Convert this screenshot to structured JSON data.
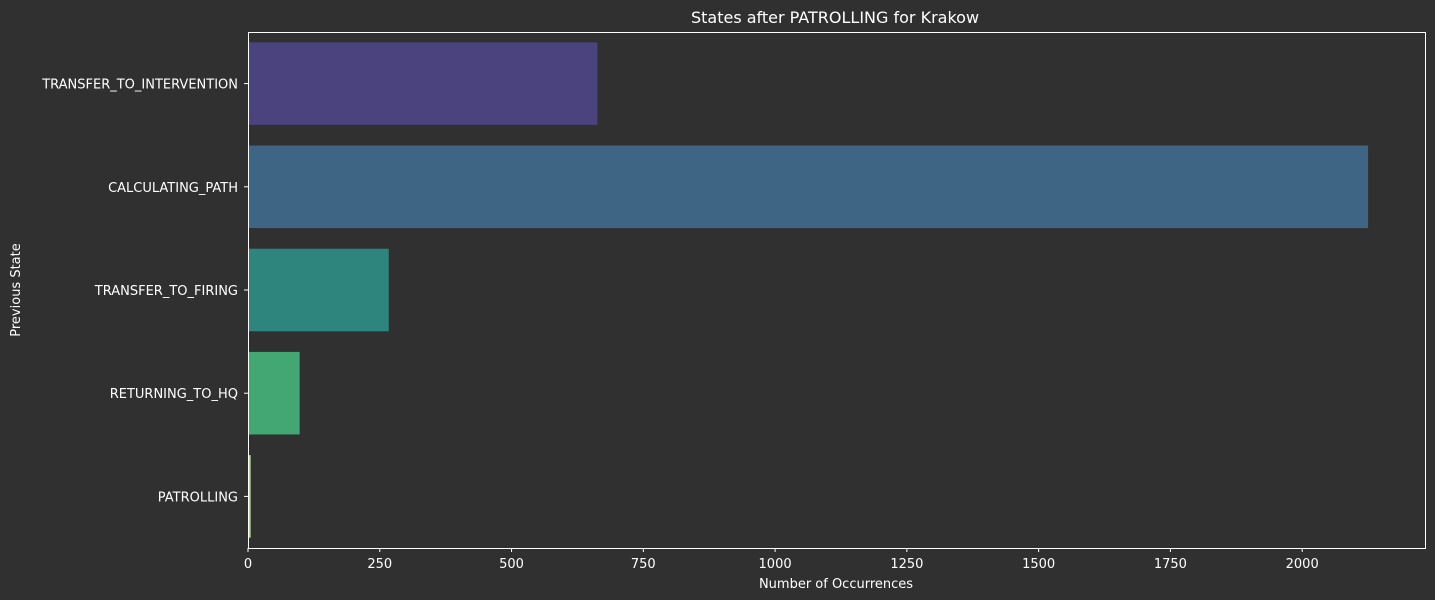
{
  "chart_data": {
    "type": "bar",
    "orientation": "horizontal",
    "title": "States after PATROLLING for Krakow",
    "xlabel": "Number of Occurrences",
    "ylabel": "Previous State",
    "categories": [
      "TRANSFER_TO_INTERVENTION",
      "CALCULATING_PATH",
      "TRANSFER_TO_FIRING",
      "RETURNING_TO_HQ",
      "PATROLLING"
    ],
    "values": [
      663,
      2125,
      267,
      98,
      5
    ],
    "colors": [
      "#4a437e",
      "#3e6584",
      "#2e857e",
      "#43a774",
      "#b8e08a"
    ],
    "xlim": [
      0,
      2233
    ],
    "xticks": [
      0,
      250,
      500,
      750,
      1000,
      1250,
      1500,
      1750,
      2000
    ],
    "background": "#303030",
    "text_color": "#ffffff",
    "grid": false
  }
}
